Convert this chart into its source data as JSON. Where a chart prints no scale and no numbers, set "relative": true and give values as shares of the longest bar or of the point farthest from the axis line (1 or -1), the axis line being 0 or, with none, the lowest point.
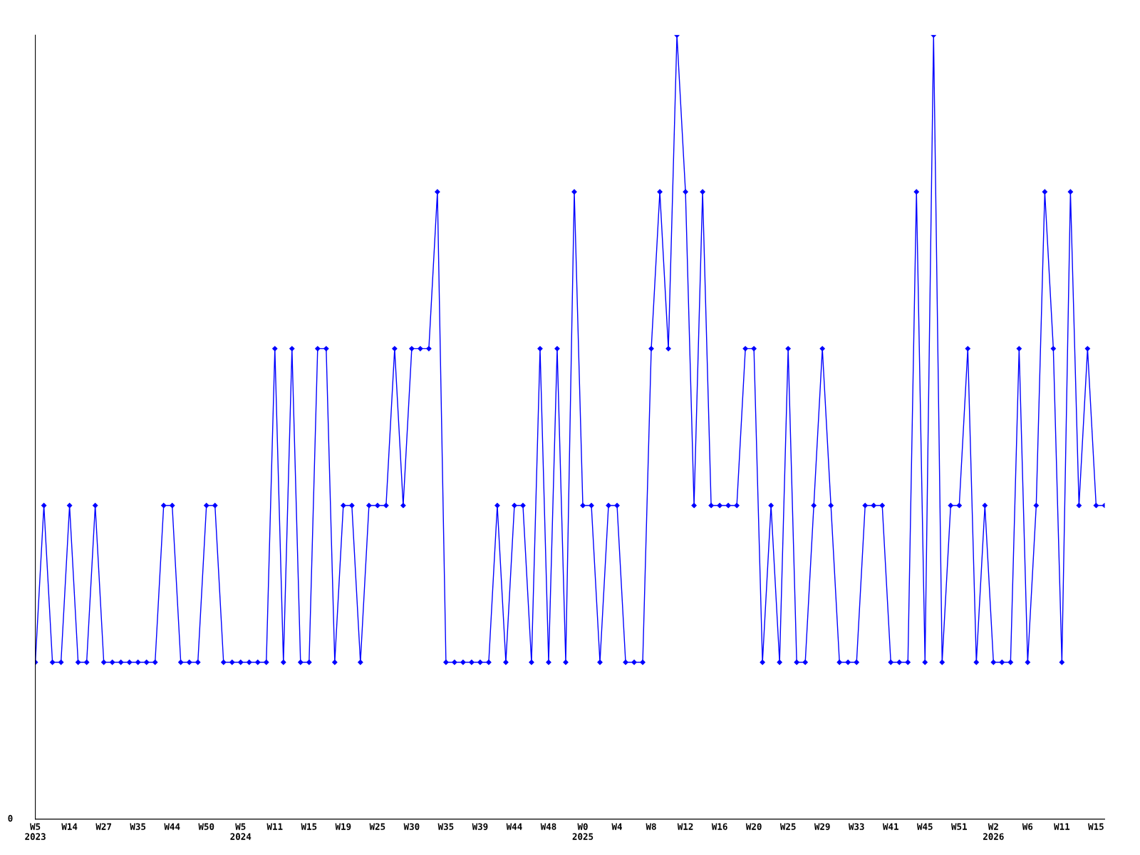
{
  "chart_data": {
    "type": "line",
    "relative": true,
    "marker": "diamond",
    "line_style": "solid",
    "grid": false,
    "legend": false,
    "categories": [
      "W5\n2023",
      null,
      null,
      null,
      "W14",
      null,
      null,
      null,
      "W27",
      null,
      null,
      null,
      "W35",
      null,
      null,
      null,
      "W44",
      null,
      null,
      null,
      "W50",
      null,
      null,
      null,
      "W5\n2024",
      null,
      null,
      null,
      "W11",
      null,
      null,
      null,
      "W15",
      null,
      null,
      null,
      "W19",
      null,
      null,
      null,
      "W25",
      null,
      null,
      null,
      "W30",
      null,
      null,
      null,
      "W35",
      null,
      null,
      null,
      "W39",
      null,
      null,
      null,
      "W44",
      null,
      null,
      null,
      "W48",
      null,
      null,
      null,
      "W0\n2025",
      null,
      null,
      null,
      "W4",
      null,
      null,
      null,
      "W8",
      null,
      null,
      null,
      "W12",
      null,
      null,
      null,
      "W16",
      null,
      null,
      null,
      "W20",
      null,
      null,
      null,
      "W25",
      null,
      null,
      null,
      "W29",
      null,
      null,
      null,
      "W33",
      null,
      null,
      null,
      "W41",
      null,
      null,
      null,
      "W45",
      null,
      null,
      null,
      "W51",
      null,
      null,
      null,
      "W2\n2026",
      null,
      null,
      null,
      "W6",
      null,
      null,
      null,
      "W11",
      null,
      null,
      null,
      "W15",
      null
    ],
    "series": [
      {
        "color": "#0000ff",
        "values": [
          0.2,
          0.4,
          0.2,
          0.2,
          0.4,
          0.2,
          0.2,
          0.4,
          0.2,
          0.2,
          0.2,
          0.2,
          0.2,
          0.2,
          0.2,
          0.4,
          0.4,
          0.2,
          0.2,
          0.2,
          0.4,
          0.4,
          0.2,
          0.2,
          0.2,
          0.2,
          0.2,
          0.2,
          0.6,
          0.2,
          0.6,
          0.2,
          0.2,
          0.6,
          0.6,
          0.2,
          0.4,
          0.4,
          0.2,
          0.4,
          0.4,
          0.4,
          0.6,
          0.4,
          0.6,
          0.6,
          0.6,
          0.8,
          0.2,
          0.2,
          0.2,
          0.2,
          0.2,
          0.2,
          0.4,
          0.2,
          0.4,
          0.4,
          0.2,
          0.6,
          0.2,
          0.6,
          0.2,
          0.8,
          0.4,
          0.4,
          0.2,
          0.4,
          0.4,
          0.2,
          0.2,
          0.2,
          0.6,
          0.8,
          0.6,
          1.0,
          0.8,
          0.4,
          0.8,
          0.4,
          0.4,
          0.4,
          0.4,
          0.6,
          0.6,
          0.2,
          0.4,
          0.2,
          0.6,
          0.2,
          0.2,
          0.4,
          0.6,
          0.4,
          0.2,
          0.2,
          0.2,
          0.4,
          0.4,
          0.4,
          0.2,
          0.2,
          0.2,
          0.8,
          0.2,
          1.0,
          0.2,
          0.4,
          0.4,
          0.6,
          0.2,
          0.4,
          0.2,
          0.2,
          0.2,
          0.6,
          0.2,
          0.4,
          0.8,
          0.6,
          0.2,
          0.8,
          0.4,
          0.6,
          0.4,
          0.4
        ]
      }
    ],
    "annotations": [
      "0"
    ]
  }
}
